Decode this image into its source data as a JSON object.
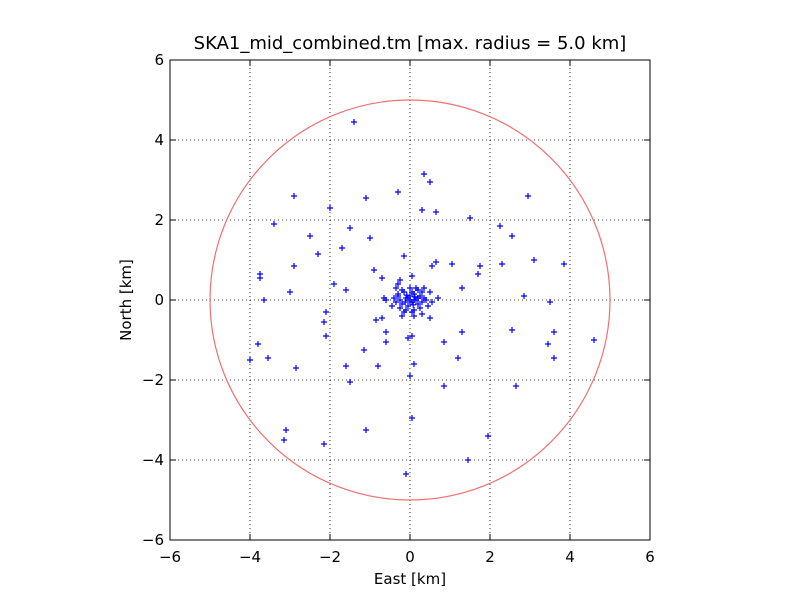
{
  "chart_data": {
    "type": "scatter",
    "title": "SKA1_mid_combined.tm [max. radius = 5.0 km]",
    "xlabel": "East [km]",
    "ylabel": "North [km]",
    "xlim": [
      -6,
      6
    ],
    "ylim": [
      -6,
      6
    ],
    "xticks": [
      -6,
      -4,
      -2,
      0,
      2,
      4,
      6
    ],
    "yticks": [
      -6,
      -4,
      -2,
      0,
      2,
      4,
      6
    ],
    "xtick_labels": [
      "−6",
      "−4",
      "−2",
      "0",
      "2",
      "4",
      "6"
    ],
    "ytick_labels": [
      "−6",
      "−4",
      "−2",
      "0",
      "2",
      "4",
      "6"
    ],
    "grid": true,
    "circle": {
      "radius_km": 5.0,
      "color": "#f07070"
    },
    "marker_color": "#0000ff",
    "points": [
      [
        -1.4,
        4.45
      ],
      [
        0.35,
        3.15
      ],
      [
        0.5,
        2.95
      ],
      [
        -0.3,
        2.7
      ],
      [
        -2.9,
        2.6
      ],
      [
        -1.1,
        2.55
      ],
      [
        2.95,
        2.6
      ],
      [
        -2.0,
        2.3
      ],
      [
        0.3,
        2.25
      ],
      [
        0.65,
        2.2
      ],
      [
        1.5,
        2.05
      ],
      [
        -3.4,
        1.9
      ],
      [
        -1.5,
        1.8
      ],
      [
        2.25,
        1.85
      ],
      [
        -2.5,
        1.6
      ],
      [
        -1.0,
        1.55
      ],
      [
        2.55,
        1.6
      ],
      [
        -1.7,
        1.3
      ],
      [
        -2.3,
        1.15
      ],
      [
        -0.15,
        1.1
      ],
      [
        0.65,
        0.95
      ],
      [
        -2.9,
        0.85
      ],
      [
        0.55,
        0.85
      ],
      [
        1.05,
        0.9
      ],
      [
        1.75,
        0.85
      ],
      [
        2.3,
        0.9
      ],
      [
        3.1,
        1.0
      ],
      [
        3.85,
        0.9
      ],
      [
        -3.75,
        0.65
      ],
      [
        -3.75,
        0.55
      ],
      [
        -0.9,
        0.75
      ],
      [
        -0.7,
        0.55
      ],
      [
        1.7,
        0.65
      ],
      [
        -1.9,
        0.4
      ],
      [
        -0.3,
        0.4
      ],
      [
        -0.25,
        0.5
      ],
      [
        0.05,
        0.6
      ],
      [
        1.3,
        0.3
      ],
      [
        -3.0,
        0.2
      ],
      [
        -1.6,
        0.25
      ],
      [
        -3.65,
        0.0
      ],
      [
        -2.1,
        -0.3
      ],
      [
        -0.65,
        0.05
      ],
      [
        -0.6,
        0.0
      ],
      [
        2.85,
        0.1
      ],
      [
        3.5,
        -0.05
      ],
      [
        0.7,
        0.05
      ],
      [
        -2.15,
        -0.55
      ],
      [
        -0.85,
        -0.5
      ],
      [
        -0.7,
        -0.45
      ],
      [
        0.5,
        -0.45
      ],
      [
        -0.6,
        -0.8
      ],
      [
        2.55,
        -0.75
      ],
      [
        3.6,
        -0.8
      ],
      [
        1.3,
        -0.8
      ],
      [
        -2.1,
        -0.9
      ],
      [
        -0.05,
        -0.95
      ],
      [
        0.05,
        -0.9
      ],
      [
        -0.6,
        -1.05
      ],
      [
        0.85,
        -1.05
      ],
      [
        3.45,
        -1.1
      ],
      [
        4.6,
        -1.0
      ],
      [
        -3.8,
        -1.1
      ],
      [
        -1.15,
        -1.25
      ],
      [
        1.2,
        -1.45
      ],
      [
        3.6,
        -1.45
      ],
      [
        -4.0,
        -1.5
      ],
      [
        -3.55,
        -1.45
      ],
      [
        -1.6,
        -1.65
      ],
      [
        -0.8,
        -1.65
      ],
      [
        0.1,
        -1.6
      ],
      [
        -2.85,
        -1.7
      ],
      [
        0.0,
        -1.9
      ],
      [
        -1.5,
        -2.05
      ],
      [
        0.85,
        -2.15
      ],
      [
        2.65,
        -2.15
      ],
      [
        0.05,
        -2.95
      ],
      [
        -1.1,
        -3.25
      ],
      [
        -3.1,
        -3.25
      ],
      [
        -3.15,
        -3.5
      ],
      [
        -2.15,
        -3.6
      ],
      [
        1.95,
        -3.4
      ],
      [
        1.45,
        -4.0
      ],
      [
        -0.1,
        -4.35
      ],
      [
        -0.3,
        0.1
      ],
      [
        -0.25,
        0.0
      ],
      [
        -0.2,
        -0.1
      ],
      [
        -0.15,
        0.2
      ],
      [
        -0.1,
        0.05
      ],
      [
        -0.05,
        -0.15
      ],
      [
        0.0,
        0.1
      ],
      [
        0.05,
        -0.05
      ],
      [
        0.1,
        0.15
      ],
      [
        0.15,
        0.0
      ],
      [
        0.2,
        -0.1
      ],
      [
        0.25,
        0.1
      ],
      [
        0.3,
        -0.05
      ],
      [
        0.35,
        0.05
      ],
      [
        -0.2,
        0.25
      ],
      [
        0.2,
        0.25
      ],
      [
        -0.1,
        -0.25
      ],
      [
        0.1,
        -0.25
      ],
      [
        0.0,
        0.3
      ],
      [
        0.05,
        -0.3
      ],
      [
        -0.35,
        -0.05
      ],
      [
        0.4,
        0.0
      ],
      [
        0.15,
        0.3
      ],
      [
        -0.15,
        -0.3
      ],
      [
        0.3,
        0.2
      ],
      [
        -0.3,
        0.15
      ],
      [
        0.0,
        -0.05
      ],
      [
        -0.05,
        0.05
      ],
      [
        0.1,
        0.0
      ],
      [
        0.05,
        0.2
      ],
      [
        -0.25,
        -0.2
      ],
      [
        0.25,
        -0.2
      ],
      [
        0.45,
        -0.15
      ],
      [
        -0.4,
        0.05
      ],
      [
        0.5,
        0.2
      ],
      [
        -0.35,
        0.3
      ],
      [
        0.1,
        -0.4
      ],
      [
        -0.2,
        -0.4
      ],
      [
        0.3,
        -0.35
      ],
      [
        0.0,
        0.0
      ],
      [
        -0.08,
        0.12
      ],
      [
        0.12,
        0.08
      ],
      [
        0.2,
        0.05
      ],
      [
        -0.12,
        -0.05
      ],
      [
        0.08,
        -0.12
      ],
      [
        0.35,
        0.3
      ],
      [
        -0.45,
        -0.15
      ],
      [
        0.55,
        -0.05
      ]
    ]
  }
}
